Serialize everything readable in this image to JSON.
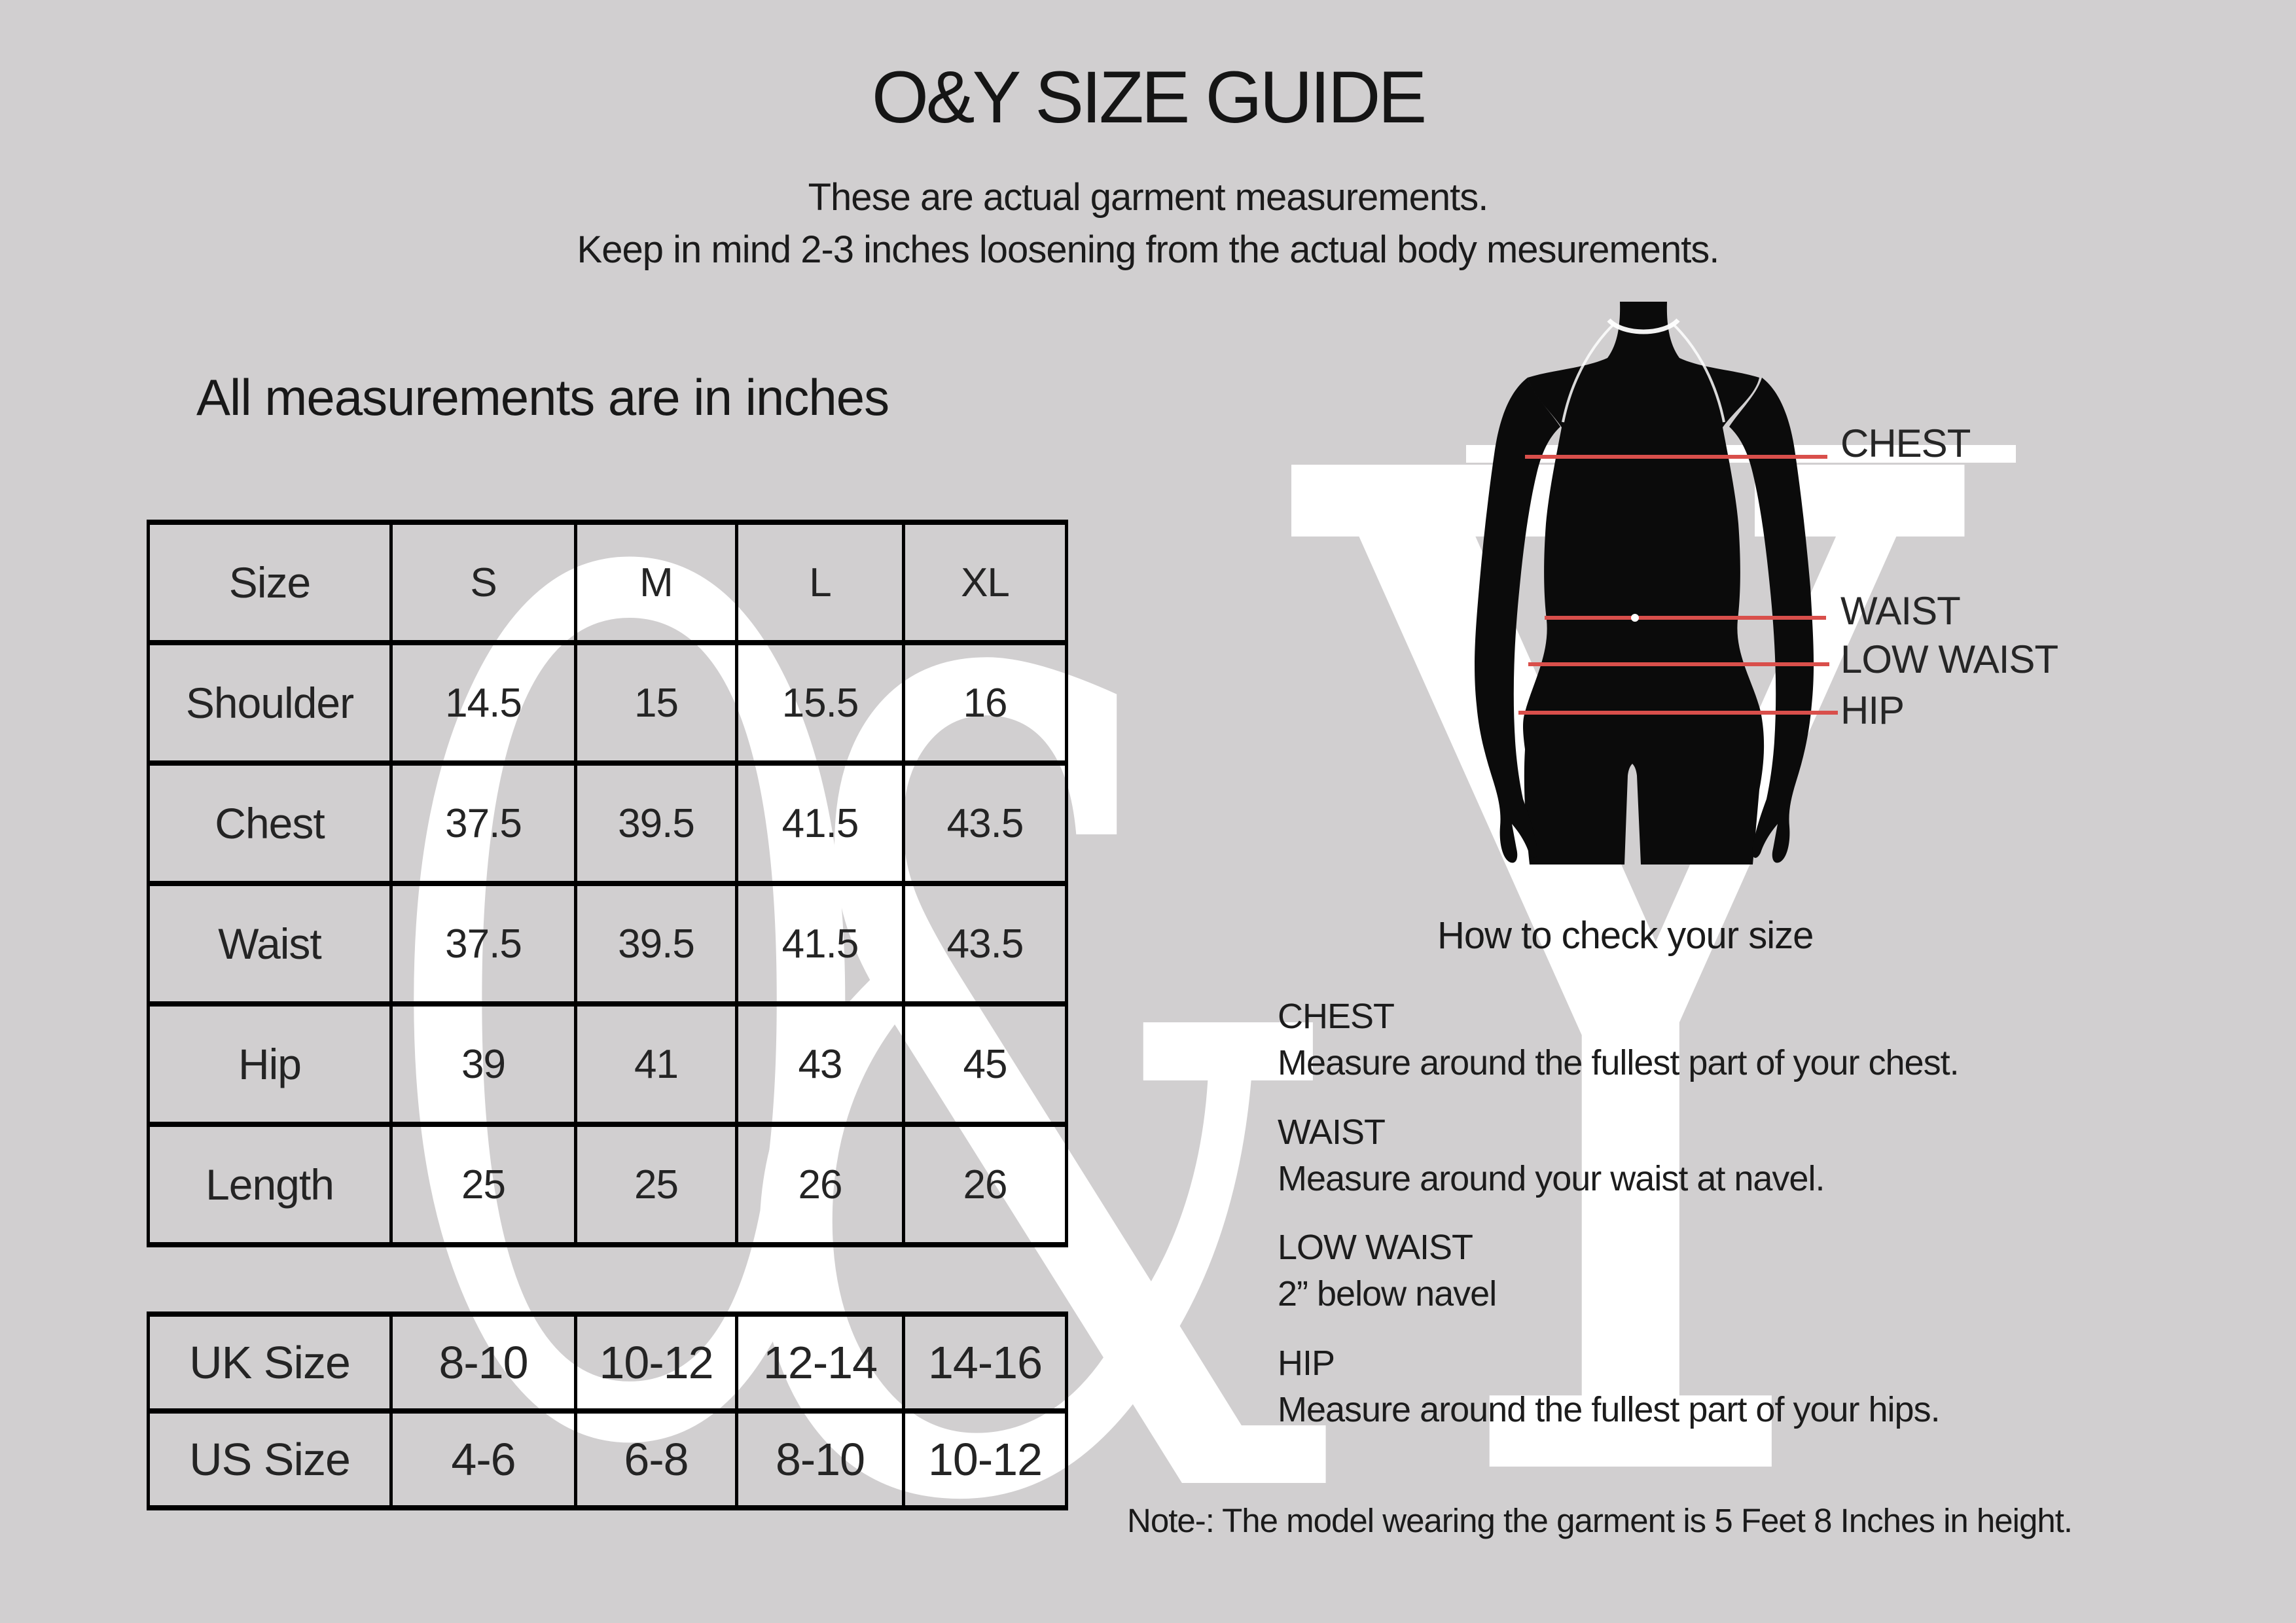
{
  "page": {
    "title": "O&Y SIZE GUIDE",
    "subtitle_line1": "These are actual garment measurements.",
    "subtitle_line2": "Keep in mind 2-3 inches loosening from the actual body mesurements.",
    "measurements_heading": "All measurements are in inches",
    "note": "Note-: The model wearing the garment is 5 Feet 8 Inches in height."
  },
  "watermark": {
    "o": "O",
    "amp": "&",
    "y": "Y"
  },
  "size_table": {
    "header": [
      "Size",
      "S",
      "M",
      "L",
      "XL"
    ],
    "rows": [
      {
        "label": "Shoulder",
        "values": [
          "14.5",
          "15",
          "15.5",
          "16"
        ]
      },
      {
        "label": "Chest",
        "values": [
          "37.5",
          "39.5",
          "41.5",
          "43.5"
        ]
      },
      {
        "label": "Waist",
        "values": [
          "37.5",
          "39.5",
          "41.5",
          "43.5"
        ]
      },
      {
        "label": "Hip",
        "values": [
          "39",
          "41",
          "43",
          "45"
        ]
      },
      {
        "label": "Length",
        "values": [
          "25",
          "25",
          "26",
          "26"
        ]
      }
    ]
  },
  "conversion_table": {
    "rows": [
      {
        "label": "UK Size",
        "values": [
          "8-10",
          "10-12",
          "12-14",
          "14-16"
        ]
      },
      {
        "label": "US Size",
        "values": [
          "4-6",
          "6-8",
          "8-10",
          "10-12"
        ]
      }
    ]
  },
  "figure": {
    "labels": [
      "CHEST",
      "WAIST",
      "LOW WAIST",
      "HIP"
    ]
  },
  "how_to": {
    "heading": "How to check your size",
    "items": [
      {
        "title": "CHEST",
        "desc": "Measure around the fullest part of your chest."
      },
      {
        "title": "WAIST",
        "desc": "Measure around your waist at navel."
      },
      {
        "title": "LOW WAIST",
        "desc": "2” below navel"
      },
      {
        "title": "HIP",
        "desc": "Measure around the fullest part of your hips."
      }
    ]
  },
  "colors": {
    "background": "#d1cfd0",
    "accent_red": "#d94f4b",
    "watermark": "#ffffff",
    "silhouette": "#0b0b0b",
    "text": "#1d1d1d"
  }
}
